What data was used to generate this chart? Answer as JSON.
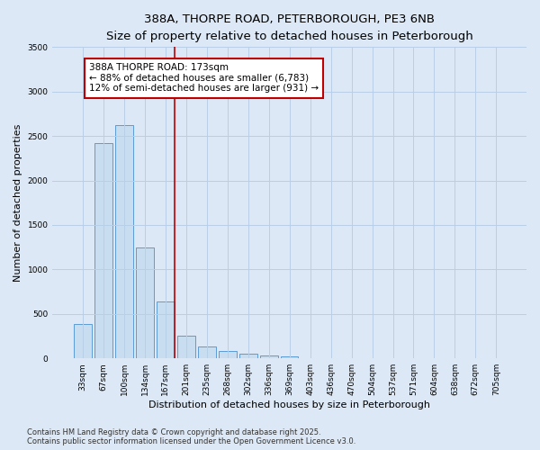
{
  "title_line1": "388A, THORPE ROAD, PETERBOROUGH, PE3 6NB",
  "title_line2": "Size of property relative to detached houses in Peterborough",
  "xlabel": "Distribution of detached houses by size in Peterborough",
  "ylabel": "Number of detached properties",
  "categories": [
    "33sqm",
    "67sqm",
    "100sqm",
    "134sqm",
    "167sqm",
    "201sqm",
    "235sqm",
    "268sqm",
    "302sqm",
    "336sqm",
    "369sqm",
    "403sqm",
    "436sqm",
    "470sqm",
    "504sqm",
    "537sqm",
    "571sqm",
    "604sqm",
    "638sqm",
    "672sqm",
    "705sqm"
  ],
  "values": [
    390,
    2420,
    2620,
    1250,
    640,
    260,
    130,
    80,
    55,
    35,
    20,
    0,
    0,
    0,
    0,
    0,
    0,
    0,
    0,
    0,
    0
  ],
  "bar_color": "#c9ddf0",
  "bar_edge_color": "#5b9bd5",
  "vline_index": 4,
  "vline_color": "#c00000",
  "vline_label_title": "388A THORPE ROAD: 173sqm",
  "vline_label_line2": "← 88% of detached houses are smaller (6,783)",
  "vline_label_line3": "12% of semi-detached houses are larger (931) →",
  "annotation_box_color": "#c00000",
  "ylim": [
    0,
    3500
  ],
  "yticks": [
    0,
    500,
    1000,
    1500,
    2000,
    2500,
    3000,
    3500
  ],
  "grid_color": "#b8cfe8",
  "bg_color": "#dce8f5",
  "plot_bg_color": "#dce8f5",
  "footer_line1": "Contains HM Land Registry data © Crown copyright and database right 2025.",
  "footer_line2": "Contains public sector information licensed under the Open Government Licence v3.0.",
  "title_fontsize": 9.5,
  "subtitle_fontsize": 8.5,
  "axis_label_fontsize": 8,
  "tick_fontsize": 6.5,
  "annotation_fontsize": 7.5,
  "footer_fontsize": 6.0
}
